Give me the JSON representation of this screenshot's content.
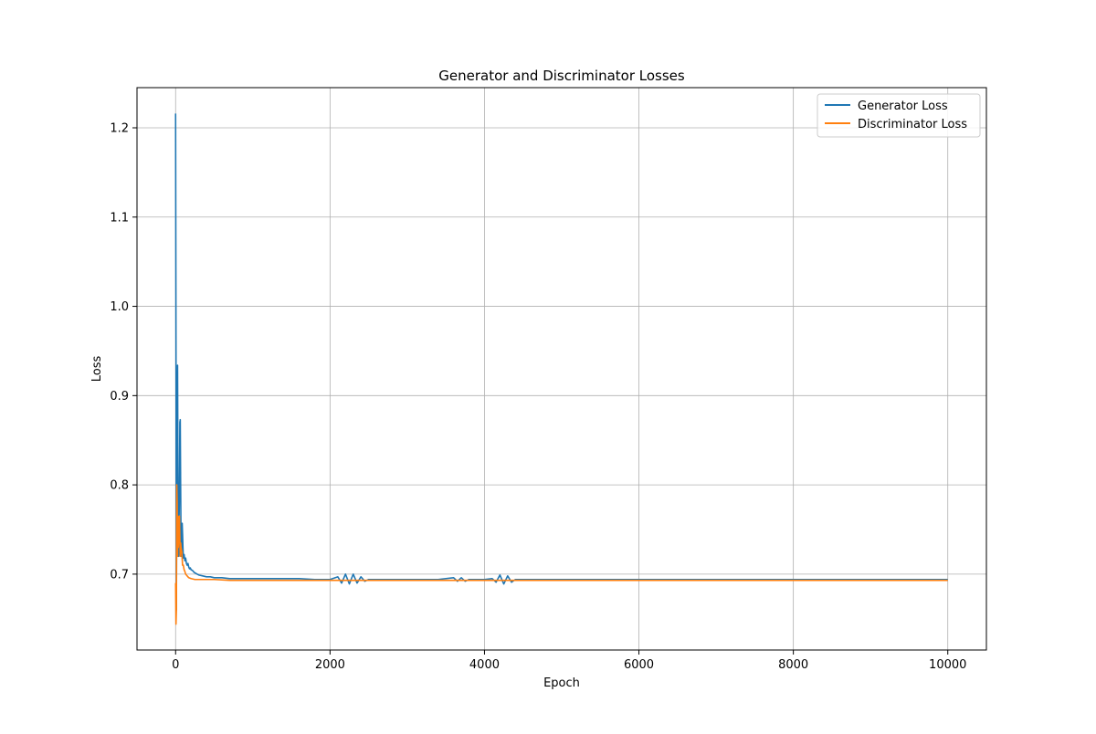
{
  "chart_data": {
    "type": "line",
    "title": "Generator and Discriminator Losses",
    "xlabel": "Epoch",
    "ylabel": "Loss",
    "xlim": [
      -500,
      10500
    ],
    "ylim": [
      0.615,
      1.245
    ],
    "xticks": [
      0,
      2000,
      4000,
      6000,
      8000,
      10000
    ],
    "yticks": [
      0.7,
      0.8,
      0.9,
      1.0,
      1.1,
      1.2
    ],
    "xtick_labels": [
      "0",
      "2000",
      "4000",
      "6000",
      "8000",
      "10000"
    ],
    "ytick_labels": [
      "0.7",
      "0.8",
      "0.9",
      "1.0",
      "1.1",
      "1.2"
    ],
    "grid": true,
    "legend_position": "top-right",
    "series": [
      {
        "name": "Generator Loss",
        "color": "#1f77b4",
        "x": [
          0,
          5,
          10,
          15,
          20,
          25,
          30,
          35,
          40,
          45,
          50,
          55,
          60,
          65,
          70,
          75,
          80,
          85,
          90,
          95,
          100,
          110,
          120,
          130,
          140,
          150,
          160,
          170,
          180,
          190,
          200,
          220,
          240,
          260,
          280,
          300,
          350,
          400,
          450,
          500,
          600,
          700,
          800,
          900,
          1000,
          1200,
          1400,
          1600,
          1800,
          2000,
          2100,
          2150,
          2200,
          2250,
          2300,
          2350,
          2400,
          2450,
          2500,
          2600,
          2800,
          3000,
          3200,
          3400,
          3600,
          3650,
          3700,
          3750,
          3800,
          4000,
          4100,
          4150,
          4200,
          4250,
          4300,
          4350,
          4400,
          4500,
          5000,
          5500,
          6000,
          6200,
          6500,
          7000,
          7500,
          8000,
          8500,
          9000,
          9500,
          10000
        ],
        "y": [
          1.216,
          0.95,
          0.66,
          0.8,
          0.87,
          0.934,
          0.82,
          0.74,
          0.72,
          0.76,
          0.8,
          0.87,
          0.873,
          0.8,
          0.74,
          0.72,
          0.73,
          0.757,
          0.745,
          0.73,
          0.718,
          0.722,
          0.715,
          0.718,
          0.712,
          0.71,
          0.712,
          0.708,
          0.706,
          0.707,
          0.705,
          0.704,
          0.702,
          0.701,
          0.7,
          0.699,
          0.698,
          0.697,
          0.697,
          0.696,
          0.696,
          0.695,
          0.695,
          0.695,
          0.695,
          0.695,
          0.695,
          0.695,
          0.694,
          0.694,
          0.697,
          0.69,
          0.7,
          0.689,
          0.7,
          0.69,
          0.697,
          0.692,
          0.694,
          0.694,
          0.694,
          0.694,
          0.694,
          0.694,
          0.696,
          0.692,
          0.696,
          0.692,
          0.694,
          0.694,
          0.695,
          0.691,
          0.699,
          0.689,
          0.698,
          0.691,
          0.694,
          0.694,
          0.694,
          0.694,
          0.694,
          0.694,
          0.694,
          0.694,
          0.694,
          0.694,
          0.694,
          0.694,
          0.694,
          0.694
        ]
      },
      {
        "name": "Discriminator Loss",
        "color": "#ff7f0e",
        "x": [
          0,
          5,
          10,
          15,
          20,
          25,
          30,
          35,
          40,
          45,
          50,
          55,
          60,
          65,
          70,
          80,
          90,
          100,
          110,
          120,
          130,
          150,
          170,
          200,
          250,
          300,
          400,
          500,
          700,
          1000,
          2000,
          4000,
          6000,
          8000,
          10000
        ],
        "y": [
          0.69,
          0.644,
          0.66,
          0.8,
          0.78,
          0.72,
          0.765,
          0.73,
          0.74,
          0.76,
          0.765,
          0.74,
          0.72,
          0.735,
          0.73,
          0.725,
          0.71,
          0.71,
          0.705,
          0.703,
          0.7,
          0.698,
          0.696,
          0.695,
          0.694,
          0.694,
          0.694,
          0.694,
          0.693,
          0.693,
          0.693,
          0.693,
          0.693,
          0.693,
          0.693
        ]
      }
    ]
  }
}
